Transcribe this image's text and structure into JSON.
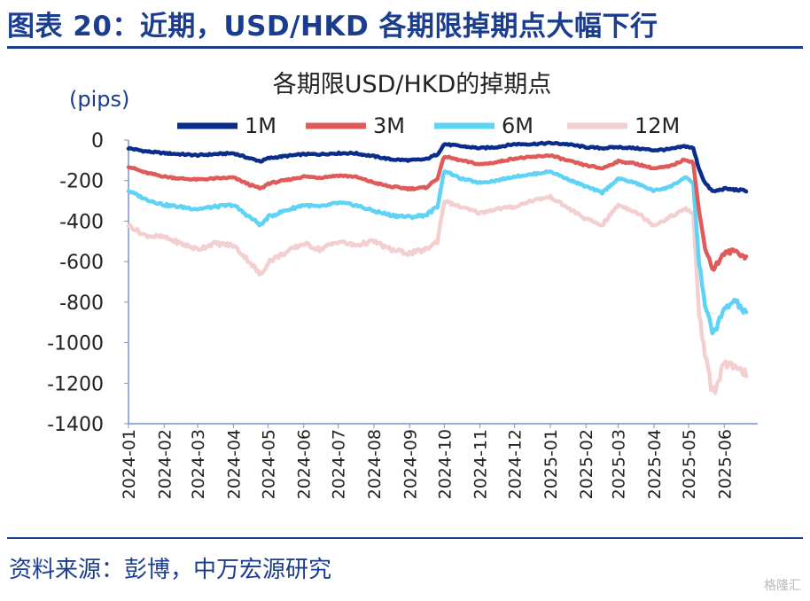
{
  "figure_title": "图表 20：近期，USD/HKD 各期限掉期点大幅下行",
  "source": "资料来源：彭博，中万宏源研究",
  "watermark": "格隆汇",
  "chart_data": {
    "type": "line",
    "title": "各期限USD/HKD的掉期点",
    "ylabel": "(pips)",
    "ylim": [
      -1400,
      0
    ],
    "yticks": [
      0,
      -200,
      -400,
      -600,
      -800,
      -1000,
      -1200,
      -1400
    ],
    "xlim": [
      "2024-01-01",
      "2025-06-30"
    ],
    "x_tick_labels": [
      "2024-01",
      "2024-02",
      "2024-03",
      "2024-04",
      "2024-05",
      "2024-06",
      "2024-07",
      "2024-08",
      "2024-09",
      "2024-10",
      "2024-11",
      "2024-12",
      "2025-01",
      "2025-02",
      "2025-03",
      "2025-04",
      "2025-05",
      "2025-06"
    ],
    "x_tick_dates": [
      "2024-01-01",
      "2024-02-01",
      "2024-03-01",
      "2024-04-01",
      "2024-05-01",
      "2024-06-01",
      "2024-07-01",
      "2024-08-01",
      "2024-09-01",
      "2024-10-01",
      "2024-11-01",
      "2024-12-01",
      "2025-01-01",
      "2025-02-01",
      "2025-03-01",
      "2025-04-01",
      "2025-05-01",
      "2025-06-01"
    ],
    "legend_position": "top",
    "grid": false,
    "series": [
      {
        "name": "1M",
        "color": "#0a2d8c",
        "points": [
          [
            "2024-01-01",
            -40
          ],
          [
            "2024-01-15",
            -55
          ],
          [
            "2024-02-01",
            -65
          ],
          [
            "2024-02-15",
            -70
          ],
          [
            "2024-03-01",
            -75
          ],
          [
            "2024-03-15",
            -70
          ],
          [
            "2024-04-01",
            -65
          ],
          [
            "2024-04-15",
            -90
          ],
          [
            "2024-04-25",
            -105
          ],
          [
            "2024-05-01",
            -90
          ],
          [
            "2024-05-15",
            -80
          ],
          [
            "2024-06-01",
            -70
          ],
          [
            "2024-06-15",
            -70
          ],
          [
            "2024-07-01",
            -65
          ],
          [
            "2024-07-15",
            -65
          ],
          [
            "2024-08-01",
            -80
          ],
          [
            "2024-08-15",
            -95
          ],
          [
            "2024-09-01",
            -100
          ],
          [
            "2024-09-15",
            -95
          ],
          [
            "2024-09-25",
            -70
          ],
          [
            "2024-10-01",
            -20
          ],
          [
            "2024-10-15",
            -30
          ],
          [
            "2024-11-01",
            -40
          ],
          [
            "2024-11-15",
            -35
          ],
          [
            "2024-12-01",
            -20
          ],
          [
            "2024-12-15",
            -20
          ],
          [
            "2025-01-01",
            -15
          ],
          [
            "2025-01-15",
            -20
          ],
          [
            "2025-02-01",
            -35
          ],
          [
            "2025-02-15",
            -40
          ],
          [
            "2025-03-01",
            -35
          ],
          [
            "2025-03-15",
            -40
          ],
          [
            "2025-04-01",
            -50
          ],
          [
            "2025-04-15",
            -45
          ],
          [
            "2025-04-28",
            -30
          ],
          [
            "2025-05-05",
            -40
          ],
          [
            "2025-05-10",
            -140
          ],
          [
            "2025-05-15",
            -210
          ],
          [
            "2025-05-22",
            -255
          ],
          [
            "2025-06-01",
            -240
          ],
          [
            "2025-06-10",
            -245
          ],
          [
            "2025-06-20",
            -250
          ]
        ]
      },
      {
        "name": "3M",
        "color": "#e05a5a",
        "points": [
          [
            "2024-01-01",
            -130
          ],
          [
            "2024-01-15",
            -160
          ],
          [
            "2024-02-01",
            -180
          ],
          [
            "2024-02-15",
            -190
          ],
          [
            "2024-03-01",
            -195
          ],
          [
            "2024-03-15",
            -190
          ],
          [
            "2024-04-01",
            -185
          ],
          [
            "2024-04-15",
            -220
          ],
          [
            "2024-04-25",
            -240
          ],
          [
            "2024-05-01",
            -215
          ],
          [
            "2024-05-15",
            -200
          ],
          [
            "2024-06-01",
            -180
          ],
          [
            "2024-06-15",
            -185
          ],
          [
            "2024-07-01",
            -175
          ],
          [
            "2024-07-15",
            -180
          ],
          [
            "2024-08-01",
            -210
          ],
          [
            "2024-08-15",
            -230
          ],
          [
            "2024-09-01",
            -240
          ],
          [
            "2024-09-15",
            -235
          ],
          [
            "2024-09-25",
            -190
          ],
          [
            "2024-10-01",
            -80
          ],
          [
            "2024-10-15",
            -100
          ],
          [
            "2024-11-01",
            -120
          ],
          [
            "2024-11-15",
            -110
          ],
          [
            "2024-12-01",
            -90
          ],
          [
            "2024-12-15",
            -85
          ],
          [
            "2025-01-01",
            -75
          ],
          [
            "2025-01-15",
            -100
          ],
          [
            "2025-02-01",
            -125
          ],
          [
            "2025-02-15",
            -140
          ],
          [
            "2025-03-01",
            -105
          ],
          [
            "2025-03-15",
            -115
          ],
          [
            "2025-04-01",
            -140
          ],
          [
            "2025-04-15",
            -130
          ],
          [
            "2025-04-28",
            -95
          ],
          [
            "2025-05-05",
            -110
          ],
          [
            "2025-05-10",
            -350
          ],
          [
            "2025-05-15",
            -520
          ],
          [
            "2025-05-22",
            -640
          ],
          [
            "2025-06-01",
            -560
          ],
          [
            "2025-06-10",
            -545
          ],
          [
            "2025-06-20",
            -580
          ]
        ]
      },
      {
        "name": "6M",
        "color": "#5fd3f5",
        "points": [
          [
            "2024-01-01",
            -250
          ],
          [
            "2024-01-15",
            -290
          ],
          [
            "2024-02-01",
            -320
          ],
          [
            "2024-02-15",
            -330
          ],
          [
            "2024-03-01",
            -340
          ],
          [
            "2024-03-15",
            -330
          ],
          [
            "2024-04-01",
            -320
          ],
          [
            "2024-04-15",
            -380
          ],
          [
            "2024-04-25",
            -420
          ],
          [
            "2024-05-01",
            -380
          ],
          [
            "2024-05-15",
            -350
          ],
          [
            "2024-06-01",
            -320
          ],
          [
            "2024-06-15",
            -330
          ],
          [
            "2024-07-01",
            -310
          ],
          [
            "2024-07-15",
            -320
          ],
          [
            "2024-08-01",
            -350
          ],
          [
            "2024-08-15",
            -370
          ],
          [
            "2024-09-01",
            -380
          ],
          [
            "2024-09-15",
            -370
          ],
          [
            "2024-09-25",
            -330
          ],
          [
            "2024-10-01",
            -150
          ],
          [
            "2024-10-15",
            -190
          ],
          [
            "2024-11-01",
            -210
          ],
          [
            "2024-11-15",
            -200
          ],
          [
            "2024-12-01",
            -180
          ],
          [
            "2024-12-15",
            -170
          ],
          [
            "2025-01-01",
            -155
          ],
          [
            "2025-01-15",
            -190
          ],
          [
            "2025-02-01",
            -230
          ],
          [
            "2025-02-15",
            -260
          ],
          [
            "2025-03-01",
            -190
          ],
          [
            "2025-03-15",
            -210
          ],
          [
            "2025-04-01",
            -250
          ],
          [
            "2025-04-15",
            -230
          ],
          [
            "2025-04-28",
            -185
          ],
          [
            "2025-05-05",
            -210
          ],
          [
            "2025-05-10",
            -600
          ],
          [
            "2025-05-15",
            -800
          ],
          [
            "2025-05-22",
            -960
          ],
          [
            "2025-06-01",
            -840
          ],
          [
            "2025-06-10",
            -790
          ],
          [
            "2025-06-20",
            -860
          ]
        ]
      },
      {
        "name": "12M",
        "color": "#f4cfcf",
        "points": [
          [
            "2024-01-01",
            -420
          ],
          [
            "2024-01-15",
            -470
          ],
          [
            "2024-02-01",
            -480
          ],
          [
            "2024-02-15",
            -510
          ],
          [
            "2024-03-01",
            -540
          ],
          [
            "2024-03-15",
            -510
          ],
          [
            "2024-04-01",
            -520
          ],
          [
            "2024-04-15",
            -600
          ],
          [
            "2024-04-25",
            -670
          ],
          [
            "2024-05-01",
            -600
          ],
          [
            "2024-05-15",
            -560
          ],
          [
            "2024-06-01",
            -510
          ],
          [
            "2024-06-15",
            -540
          ],
          [
            "2024-07-01",
            -500
          ],
          [
            "2024-07-15",
            -520
          ],
          [
            "2024-08-01",
            -500
          ],
          [
            "2024-08-15",
            -540
          ],
          [
            "2024-09-01",
            -560
          ],
          [
            "2024-09-15",
            -540
          ],
          [
            "2024-09-25",
            -500
          ],
          [
            "2024-10-01",
            -300
          ],
          [
            "2024-10-15",
            -330
          ],
          [
            "2024-11-01",
            -360
          ],
          [
            "2024-11-15",
            -340
          ],
          [
            "2024-12-01",
            -330
          ],
          [
            "2024-12-15",
            -300
          ],
          [
            "2025-01-01",
            -280
          ],
          [
            "2025-01-15",
            -330
          ],
          [
            "2025-02-01",
            -390
          ],
          [
            "2025-02-15",
            -420
          ],
          [
            "2025-03-01",
            -320
          ],
          [
            "2025-03-15",
            -350
          ],
          [
            "2025-04-01",
            -420
          ],
          [
            "2025-04-15",
            -380
          ],
          [
            "2025-04-28",
            -340
          ],
          [
            "2025-05-05",
            -360
          ],
          [
            "2025-05-10",
            -850
          ],
          [
            "2025-05-15",
            -1050
          ],
          [
            "2025-05-22",
            -1260
          ],
          [
            "2025-06-01",
            -1100
          ],
          [
            "2025-06-10",
            -1130
          ],
          [
            "2025-06-20",
            -1150
          ]
        ]
      }
    ]
  }
}
